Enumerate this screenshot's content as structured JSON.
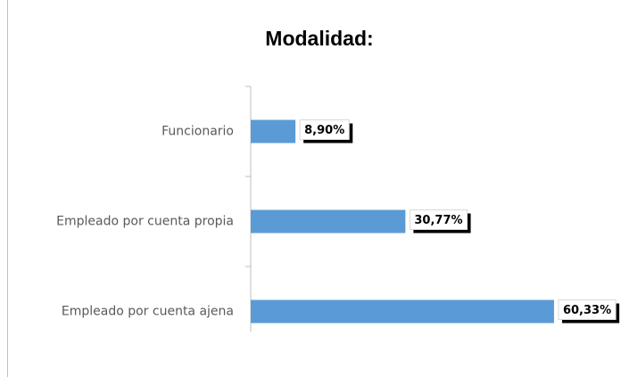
{
  "chart_data": {
    "type": "bar",
    "orientation": "horizontal",
    "title": "Modalidad:",
    "categories": [
      "Funcionario",
      "Empleado por cuenta propia",
      "Empleado por cuenta ajena"
    ],
    "values": [
      8.9,
      30.77,
      60.33
    ],
    "value_labels": [
      "8,90%",
      "30,77%",
      "60,33%"
    ],
    "color": "#5b9bd5"
  }
}
